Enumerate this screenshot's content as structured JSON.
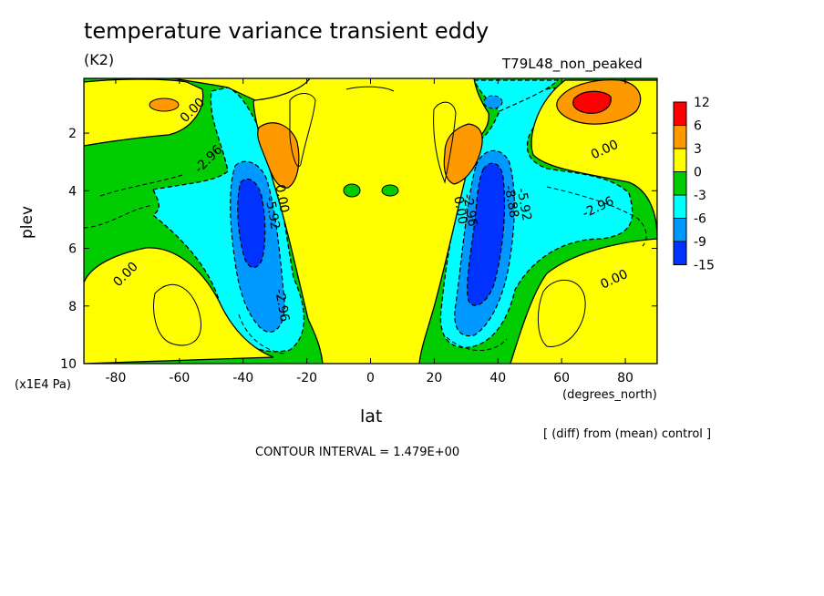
{
  "header": {
    "title": "temperature variance transient eddy",
    "units": "(K2)",
    "run": "T79L48_non_peaked"
  },
  "axes": {
    "ylabel": "plev",
    "yunits": "(x1E4 Pa)",
    "xlabel": "lat",
    "xunits": "(degrees_north)"
  },
  "footer": {
    "note": "[ (diff) from (mean) control ]",
    "interval": "CONTOUR INTERVAL = 1.479E+00"
  },
  "chart_data": {
    "type": "heatmap",
    "title": "temperature variance transient eddy",
    "xlabel": "lat",
    "ylabel": "plev",
    "xlim": [
      -90,
      90
    ],
    "ylim": [
      10,
      0.1
    ],
    "x_ticks": [
      -80,
      -60,
      -40,
      -20,
      0,
      20,
      40,
      60,
      80
    ],
    "y_ticks": [
      2,
      4,
      6,
      8,
      10
    ],
    "colorbar": {
      "labels": [
        "12",
        "6",
        "3",
        "0",
        "-3",
        "-6",
        "-9",
        "-15"
      ],
      "colors": [
        "#ff0000",
        "#ff9900",
        "#ffff00",
        "#00cc00",
        "#00ffff",
        "#0099ff",
        "#0033ff"
      ]
    },
    "contour_labels": [
      {
        "text": "0.00",
        "lat": -55,
        "plev": 1.3
      },
      {
        "text": "-2.96",
        "lat": -50,
        "plev": 3.0
      },
      {
        "text": "0.00",
        "lat": -76,
        "plev": 7.0
      },
      {
        "text": "-2.96",
        "lat": -29,
        "plev": 8.0
      },
      {
        "text": "-5.92",
        "lat": -32,
        "plev": 4.8
      },
      {
        "text": "0.00",
        "lat": -29,
        "plev": 4.3
      },
      {
        "text": "0.00",
        "lat": 27,
        "plev": 4.7
      },
      {
        "text": "-2.96",
        "lat": 30,
        "plev": 4.7
      },
      {
        "text": "-8.88",
        "lat": 43,
        "plev": 4.4
      },
      {
        "text": "-5.92",
        "lat": 47,
        "plev": 4.5
      },
      {
        "text": "-2.96",
        "lat": 72,
        "plev": 4.7
      },
      {
        "text": "0.00",
        "lat": 74,
        "plev": 2.7
      },
      {
        "text": "0.00",
        "lat": 77,
        "plev": 7.2
      }
    ]
  }
}
